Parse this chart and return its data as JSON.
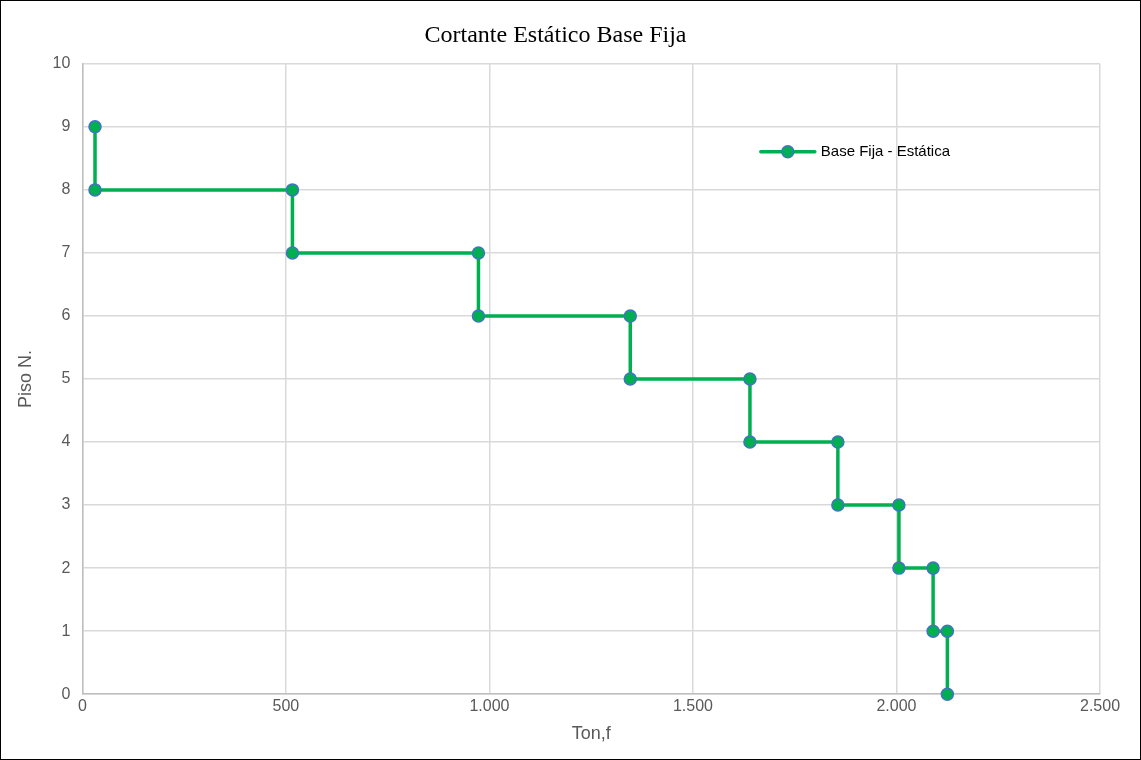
{
  "chart_data": {
    "type": "line",
    "title": "Cortante Estático Base Fija",
    "xlabel": "Ton,f",
    "ylabel": "Piso N.",
    "series": [
      {
        "name": "Base Fija - Estática",
        "color": "#00b050",
        "x": [
          31,
          31,
          516,
          516,
          973,
          973,
          1346,
          1346,
          1640,
          1640,
          1856,
          1856,
          2006,
          2006,
          2090,
          2090,
          2125,
          2125
        ],
        "values": [
          9,
          8,
          8,
          7,
          7,
          6,
          6,
          5,
          5,
          4,
          4,
          3,
          3,
          2,
          2,
          1,
          1,
          0
        ]
      }
    ],
    "xlim": [
      0,
      2500
    ],
    "xticks": [
      0,
      500,
      {
        "value": 1000,
        "label": "1.000"
      },
      {
        "value": 1500,
        "label": "1.500"
      },
      {
        "value": 2000,
        "label": "2.000"
      },
      {
        "value": 2500,
        "label": "2.500"
      }
    ],
    "ylim": [
      0,
      10
    ],
    "yticks": [
      0,
      1,
      2,
      3,
      4,
      5,
      6,
      7,
      8,
      9,
      10
    ],
    "grid": true,
    "legend": "top right",
    "marker": "circle",
    "line_style": "solid"
  }
}
